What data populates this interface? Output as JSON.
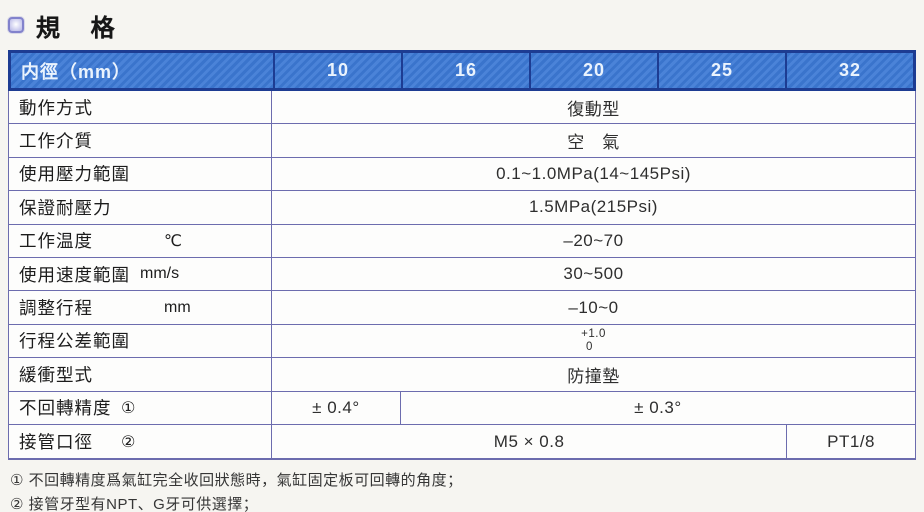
{
  "title": "規 格",
  "table": {
    "header_label": "内徑（mm）",
    "columns": [
      "10",
      "16",
      "20",
      "25",
      "32"
    ],
    "rows": [
      {
        "label": "動作方式",
        "cells": [
          {
            "text": "復動型",
            "span": 5
          }
        ]
      },
      {
        "label": "工作介質",
        "cells": [
          {
            "text": "空　氣",
            "span": 5
          }
        ]
      },
      {
        "label": "使用壓力範圍",
        "cells": [
          {
            "text": "0.1~1.0MPa(14~145Psi)",
            "span": 5
          }
        ]
      },
      {
        "label": "保證耐壓力",
        "cells": [
          {
            "text": "1.5MPa(215Psi)",
            "span": 5
          }
        ]
      },
      {
        "label": "工作温度",
        "unit": "℃",
        "cells": [
          {
            "text": "–20~70",
            "span": 5
          }
        ]
      },
      {
        "label": "使用速度範圍",
        "unit": "mm/s",
        "cells": [
          {
            "text": "30~500",
            "span": 5
          }
        ]
      },
      {
        "label": "調整行程",
        "unit": "mm",
        "cells": [
          {
            "text": "–10~0",
            "span": 5
          }
        ]
      },
      {
        "label": "行程公差範圍",
        "cells": [
          {
            "lines": [
              "+1.0",
              "0"
            ],
            "span": 5
          }
        ]
      },
      {
        "label": "緩衝型式",
        "cells": [
          {
            "text": "防撞墊",
            "span": 5
          }
        ]
      },
      {
        "label": "不回轉精度",
        "unit": "①",
        "cells": [
          {
            "text": "± 0.4°",
            "span": 1
          },
          {
            "text": "± 0.3°",
            "span": 4
          }
        ]
      },
      {
        "label": "接管口徑",
        "unit": "②",
        "cells": [
          {
            "text": "M5 × 0.8",
            "span": 4
          },
          {
            "text": "PT1/8",
            "span": 1
          }
        ]
      }
    ]
  },
  "footnotes": [
    "① 不回轉精度爲氣缸完全收回狀態時，氣缸固定板可回轉的角度；",
    "② 接管牙型有NPT、G牙可供選擇；"
  ],
  "colors": {
    "header_bg": "#3d7ad5",
    "header_border": "#1d3c92",
    "grid_border": "#6c6cae"
  }
}
